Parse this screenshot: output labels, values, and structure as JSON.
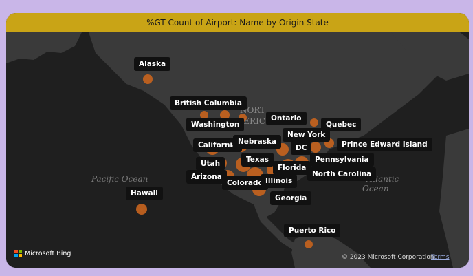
{
  "title": "%GT Count of Airport: Name by Origin State",
  "ocean_labels": {
    "pacific_1": "Pacific Ocean",
    "atlantic_1": "Atlantic",
    "atlantic_2": "Ocean",
    "north_america_1": "NORT",
    "north_america_2": "MERIC"
  },
  "states": [
    {
      "name": "Alaska"
    },
    {
      "name": "British Columbia"
    },
    {
      "name": "Washington"
    },
    {
      "name": "Ontario"
    },
    {
      "name": "Quebec"
    },
    {
      "name": "New York"
    },
    {
      "name": "California"
    },
    {
      "name": "Nebraska"
    },
    {
      "name": "DC"
    },
    {
      "name": "Prince Edward Island"
    },
    {
      "name": "Utah"
    },
    {
      "name": "Texas"
    },
    {
      "name": "Pennsylvania"
    },
    {
      "name": "Florida"
    },
    {
      "name": "Arizona"
    },
    {
      "name": "North Carolina"
    },
    {
      "name": "Colorado"
    },
    {
      "name": "Illinois"
    },
    {
      "name": "Hawaii"
    },
    {
      "name": "Georgia"
    },
    {
      "name": "Puerto Rico"
    }
  ],
  "attribution": {
    "provider": "Microsoft Bing",
    "copyright": "© 2023 Microsoft Corporation",
    "terms": "Terms"
  },
  "colors": {
    "background": "#c9b6e8",
    "title_bar": "#c9a416",
    "land": "#3a3a3a",
    "water": "#1f1f1f",
    "bubble": "#c8641e"
  }
}
